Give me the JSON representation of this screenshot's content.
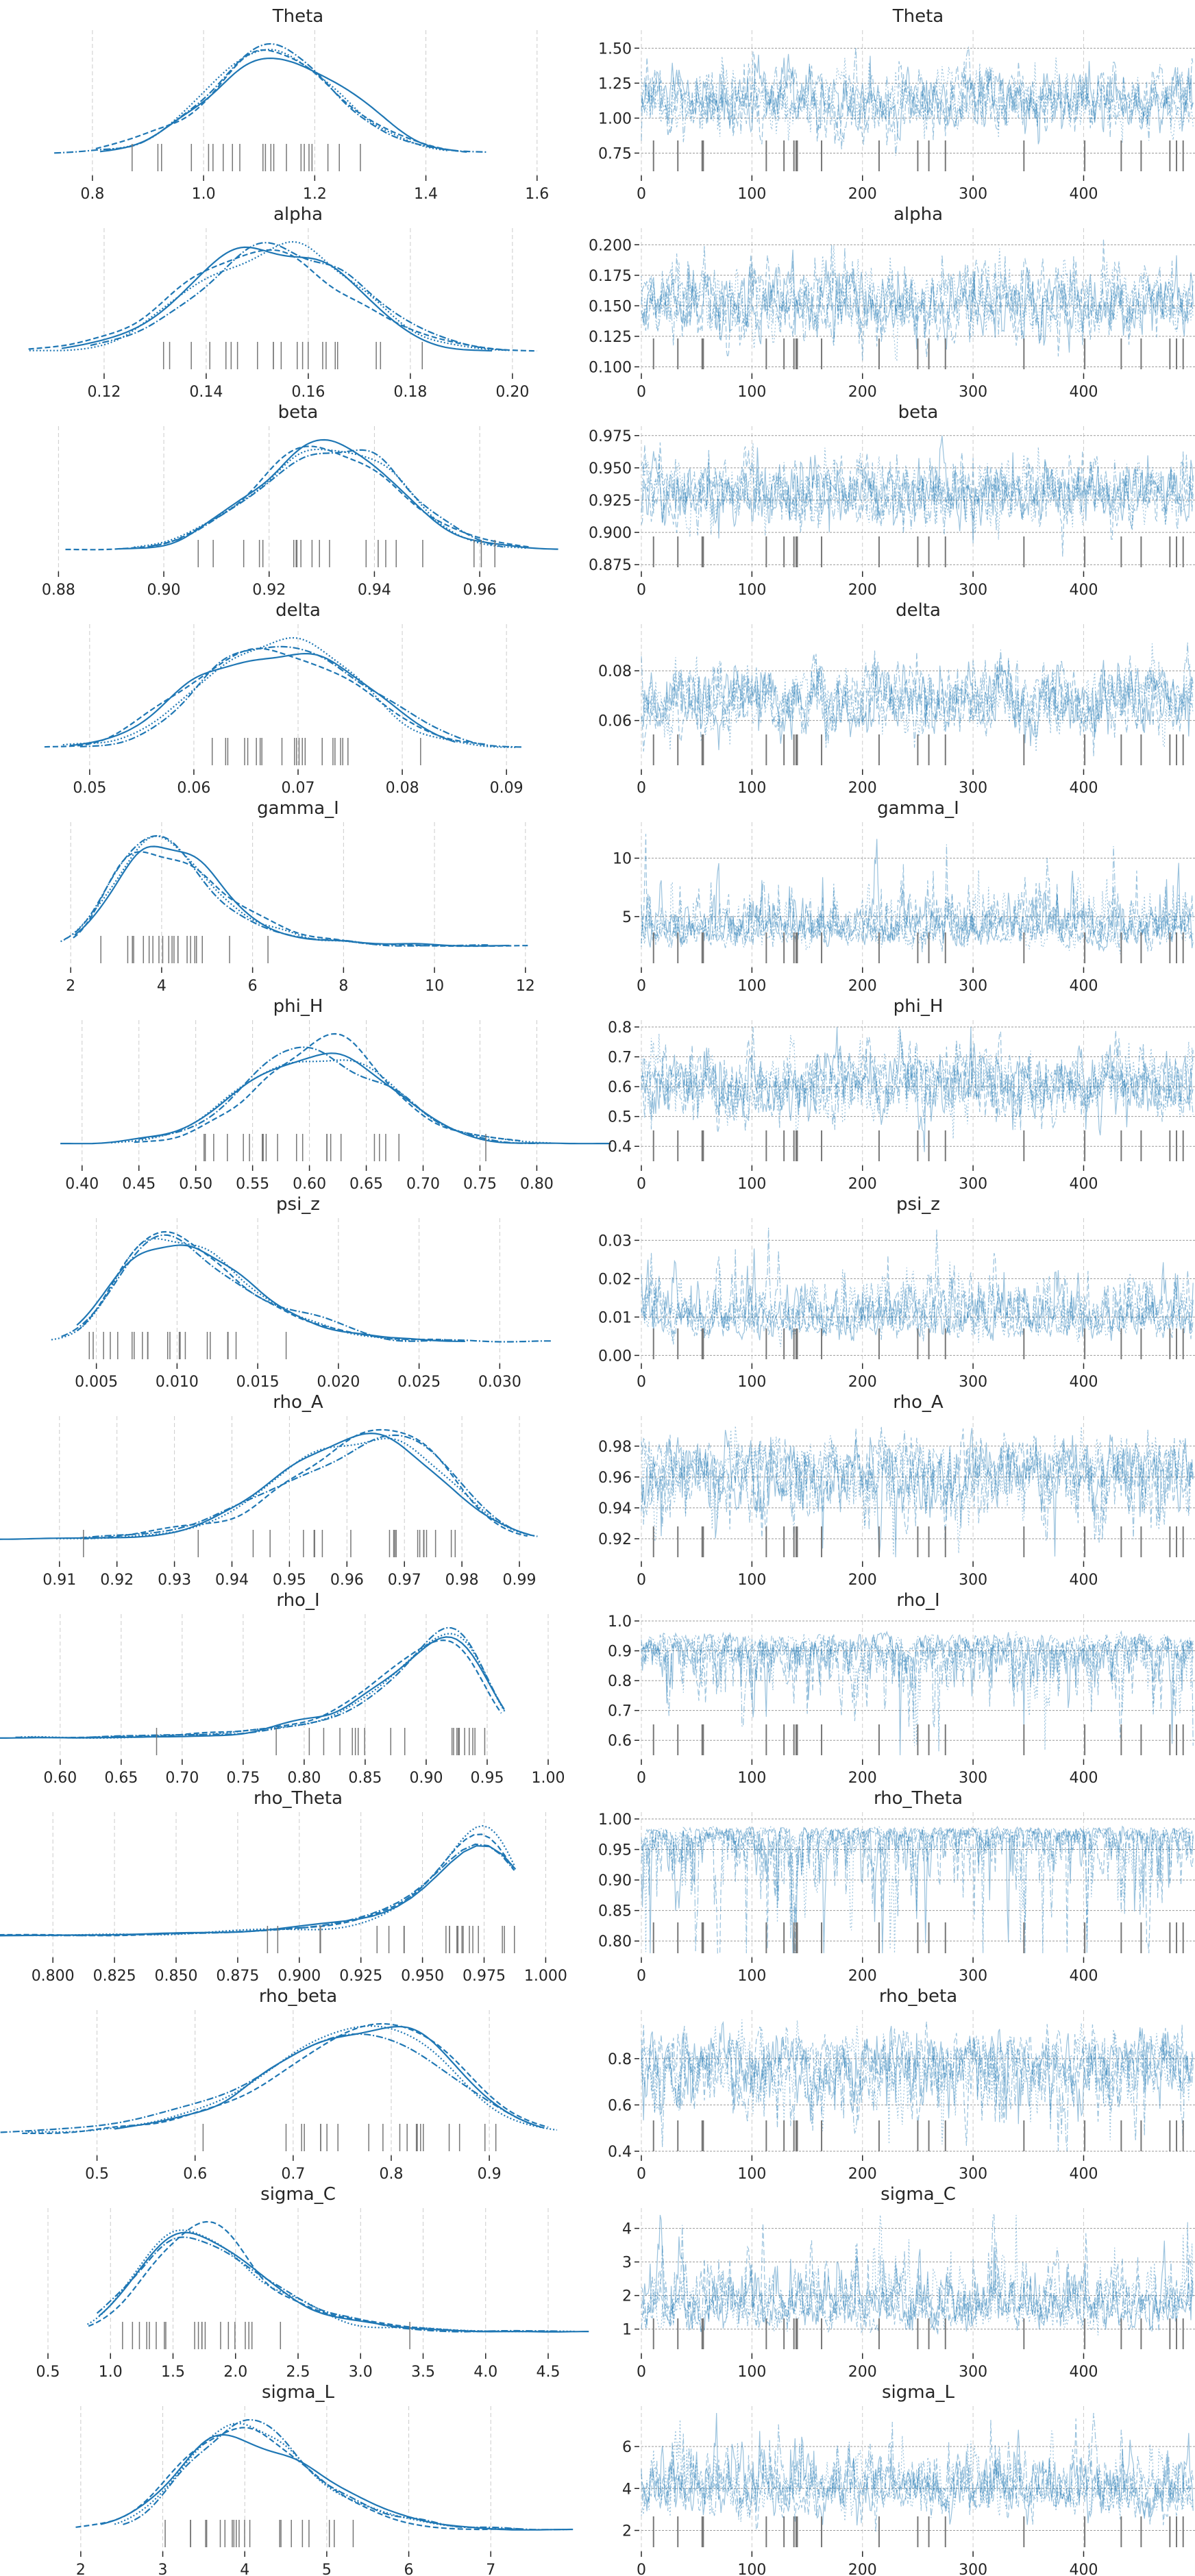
{
  "chart_data": {
    "type": "line",
    "description_kind": "trace plot",
    "chains": 4,
    "draws": 500,
    "trace_xticks": [
      0,
      100,
      200,
      300,
      400
    ],
    "trace_xlim": [
      0,
      497
    ],
    "divergence_draws": [
      11,
      33,
      55,
      56,
      113,
      129,
      138,
      140,
      141,
      163,
      215,
      250,
      260,
      275,
      346,
      401,
      434,
      452,
      478,
      484,
      490
    ],
    "color": "#1f77b4",
    "rug_color": "#777777",
    "variables": [
      {
        "name": "Theta",
        "mean": 1.12,
        "sd": 0.12,
        "skew": 0,
        "kde_xlim": [
          0.72,
          1.62
        ],
        "kde_xticks": [
          "0.8",
          "1.0",
          "1.2",
          "1.4",
          "1.6"
        ],
        "trace_ylim": [
          0.62,
          1.58
        ],
        "trace_yticks": [
          "0.75",
          "1.00",
          "1.25",
          "1.50"
        ]
      },
      {
        "name": "alpha",
        "mean": 0.153,
        "sd": 0.015,
        "skew": 0,
        "kde_xlim": [
          0.109,
          0.207
        ],
        "kde_xticks": [
          "0.12",
          "0.14",
          "0.16",
          "0.18",
          "0.20"
        ],
        "trace_ylim": [
          0.098,
          0.208
        ],
        "trace_yticks": [
          "0.100",
          "0.125",
          "0.150",
          "0.175",
          "0.200"
        ]
      },
      {
        "name": "beta",
        "mean": 0.931,
        "sd": 0.013,
        "skew": 0,
        "kde_xlim": [
          0.878,
          0.973
        ],
        "kde_xticks": [
          "0.88",
          "0.90",
          "0.92",
          "0.94",
          "0.96"
        ],
        "trace_ylim": [
          0.873,
          0.977
        ],
        "trace_yticks": [
          "0.875",
          "0.900",
          "0.925",
          "0.950",
          "0.975"
        ]
      },
      {
        "name": "delta",
        "mean": 0.068,
        "sd": 0.007,
        "skew": 0,
        "kde_xlim": [
          0.046,
          0.094
        ],
        "kde_xticks": [
          "0.05",
          "0.06",
          "0.07",
          "0.08",
          "0.09"
        ],
        "trace_ylim": [
          0.042,
          0.096
        ],
        "trace_yticks": [
          "0.06",
          "0.08"
        ]
      },
      {
        "name": "gamma_I",
        "mean": 4.2,
        "sd": 1.2,
        "skew": 0.35,
        "kde_xlim": [
          1.5,
          12.5
        ],
        "kde_xticks": [
          "2",
          "4",
          "6",
          "8",
          "10",
          "12"
        ],
        "trace_ylim": [
          1.0,
          12.5
        ],
        "trace_yticks": [
          "5",
          "10"
        ]
      },
      {
        "name": "phi_H",
        "mean": 0.61,
        "sd": 0.06,
        "skew": 0,
        "kde_xlim": [
          0.37,
          0.81
        ],
        "kde_xticks": [
          "0.40",
          "0.45",
          "0.50",
          "0.55",
          "0.60",
          "0.65",
          "0.70",
          "0.75",
          "0.80"
        ],
        "trace_ylim": [
          0.35,
          0.8
        ],
        "trace_yticks": [
          "0.4",
          "0.5",
          "0.6",
          "0.7",
          "0.8"
        ]
      },
      {
        "name": "psi_z",
        "mean": 0.011,
        "sd": 0.0038,
        "skew": 0.3,
        "kde_xlim": [
          0.002,
          0.033
        ],
        "kde_xticks": [
          "0.005",
          "0.010",
          "0.015",
          "0.020",
          "0.025",
          "0.030"
        ],
        "trace_ylim": [
          -0.001,
          0.034
        ],
        "trace_yticks": [
          "0.00",
          "0.01",
          "0.02",
          "0.03"
        ]
      },
      {
        "name": "rho_A",
        "mean": 0.963,
        "sd": 0.013,
        "skew": -0.2,
        "kde_xlim": [
          0.908,
          0.995
        ],
        "kde_xticks": [
          "0.91",
          "0.92",
          "0.93",
          "0.94",
          "0.95",
          "0.96",
          "0.97",
          "0.98",
          "0.99"
        ],
        "trace_ylim": [
          0.908,
          0.995
        ],
        "trace_yticks": [
          "0.92",
          "0.94",
          "0.96",
          "0.98"
        ]
      },
      {
        "name": "rho_I",
        "mean": 0.9,
        "sd": 0.045,
        "skew": -0.6,
        "kde_xlim": [
          0.59,
          1.0
        ],
        "kde_xticks": [
          "0.60",
          "0.65",
          "0.70",
          "0.75",
          "0.80",
          "0.85",
          "0.90",
          "0.95",
          "1.00"
        ],
        "trace_ylim": [
          0.55,
          1.0
        ],
        "trace_yticks": [
          "0.6",
          "0.7",
          "0.8",
          "0.9",
          "1.0"
        ]
      },
      {
        "name": "rho_Theta",
        "mean": 0.97,
        "sd": 0.018,
        "skew": -1.0,
        "kde_xlim": [
          0.798,
          1.001
        ],
        "kde_xticks": [
          "0.800",
          "0.825",
          "0.850",
          "0.875",
          "0.900",
          "0.925",
          "0.950",
          "0.975",
          "1.000"
        ],
        "trace_ylim": [
          0.78,
          1.0
        ],
        "trace_yticks": [
          "0.80",
          "0.85",
          "0.90",
          "0.95",
          "1.00"
        ]
      },
      {
        "name": "rho_beta",
        "mean": 0.76,
        "sd": 0.09,
        "skew": -0.2,
        "kde_xlim": [
          0.45,
          0.96
        ],
        "kde_xticks": [
          "0.5",
          "0.6",
          "0.7",
          "0.8",
          "0.9"
        ],
        "trace_ylim": [
          0.4,
          0.98
        ],
        "trace_yticks": [
          "0.4",
          "0.6",
          "0.8"
        ]
      },
      {
        "name": "sigma_C",
        "mean": 1.75,
        "sd": 0.48,
        "skew": 0.35,
        "kde_xlim": [
          0.5,
          4.5
        ],
        "kde_xticks": [
          "0.5",
          "1.0",
          "1.5",
          "2.0",
          "2.5",
          "3.0",
          "3.5",
          "4.0",
          "4.5"
        ],
        "trace_ylim": [
          0.4,
          4.4
        ],
        "trace_yticks": [
          "1",
          "2",
          "3",
          "4"
        ]
      },
      {
        "name": "sigma_L",
        "mean": 4.1,
        "sd": 0.8,
        "skew": 0.2,
        "kde_xlim": [
          1.6,
          7.7
        ],
        "kde_xticks": [
          "2",
          "3",
          "4",
          "5",
          "6",
          "7"
        ],
        "trace_ylim": [
          1.2,
          7.6
        ],
        "trace_yticks": [
          "2",
          "4",
          "6"
        ]
      }
    ]
  }
}
